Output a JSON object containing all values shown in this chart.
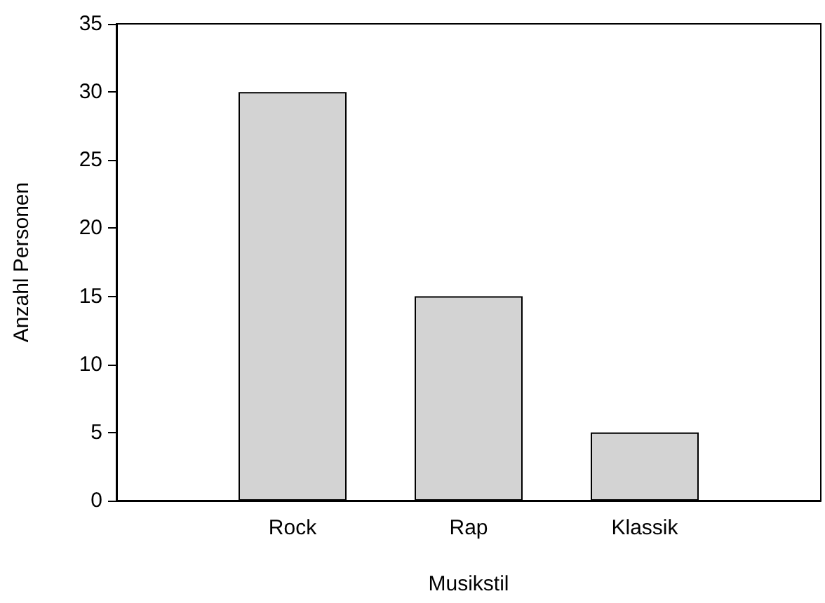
{
  "chart_data": {
    "type": "bar",
    "xlabel": "Musikstil",
    "ylabel": "Anzahl Personen",
    "categories": [
      "Rock",
      "Rap",
      "Klassik"
    ],
    "values": [
      30,
      15,
      5
    ],
    "color": "#d3d3d3",
    "ylim": [
      0,
      35
    ],
    "yticks": [
      0,
      5,
      10,
      15,
      20,
      25,
      30,
      35
    ],
    "grid": false
  }
}
